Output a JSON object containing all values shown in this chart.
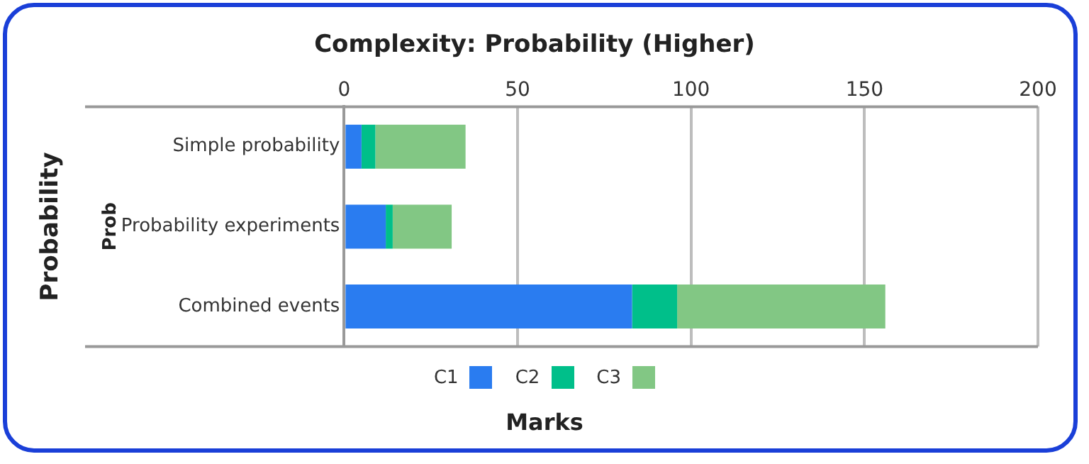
{
  "chart_data": {
    "type": "bar",
    "orientation": "horizontal",
    "stacked": true,
    "title": "Complexity: Probability (Higher)",
    "xlabel": "Marks",
    "ylabel": "Probability",
    "annotations": [
      "Prob"
    ],
    "categories": [
      "Simple probability",
      "Probability experiments",
      "Combined events"
    ],
    "series": [
      {
        "name": "C1",
        "color": "#2a7cf0",
        "values": [
          5,
          12,
          83
        ]
      },
      {
        "name": "C2",
        "color": "#00bf8a",
        "values": [
          4,
          2,
          13
        ]
      },
      {
        "name": "C3",
        "color": "#82c784",
        "values": [
          26,
          17,
          60
        ]
      }
    ],
    "xlim": [
      0,
      200
    ],
    "xticks": [
      0,
      50,
      100,
      150,
      200
    ],
    "grid": "x",
    "legend": "bottom"
  }
}
